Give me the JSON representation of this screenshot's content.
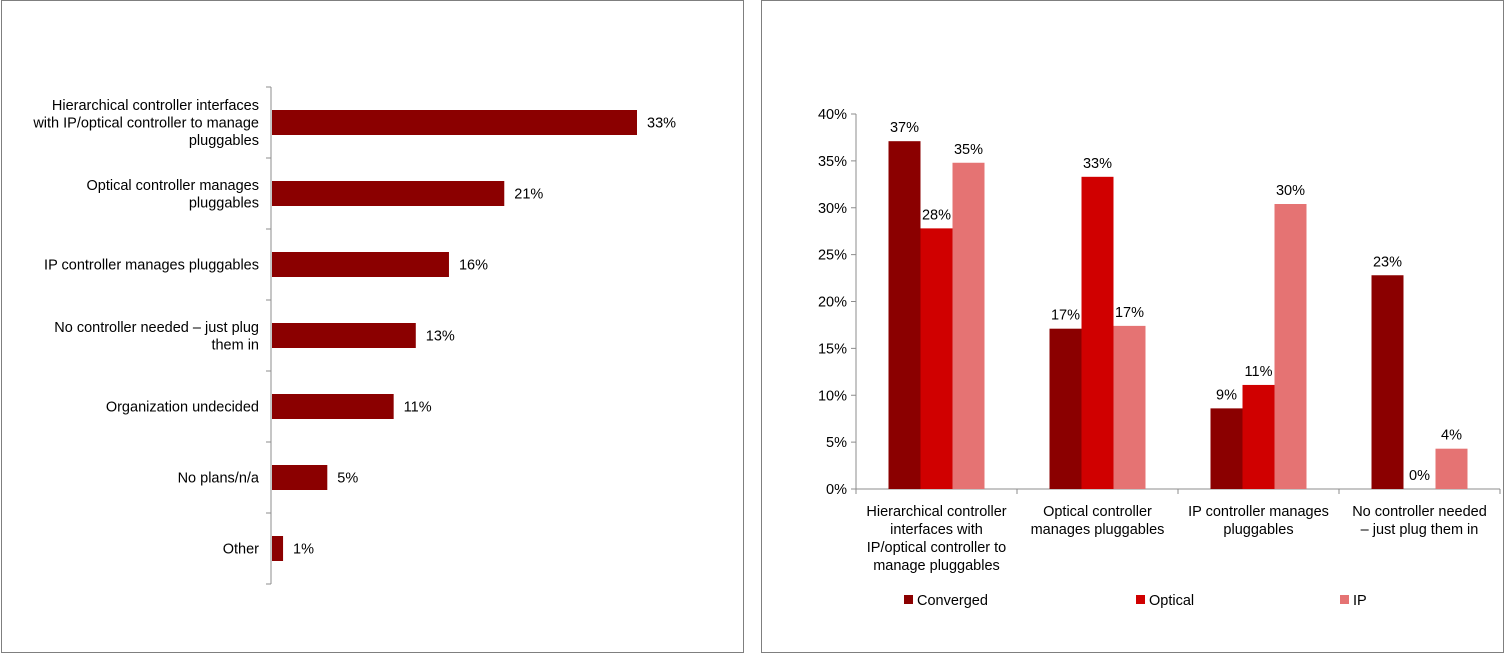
{
  "chart_data": [
    {
      "type": "bar",
      "orientation": "horizontal",
      "categories": [
        [
          "Hierarchical controller interfaces",
          "with IP/optical controller to manage",
          "pluggables"
        ],
        [
          "Optical controller manages",
          "pluggables"
        ],
        [
          "IP controller manages pluggables"
        ],
        [
          "No controller needed – just plug",
          "them in"
        ],
        [
          "Organization undecided"
        ],
        [
          "No plans/n/a"
        ],
        [
          "Other"
        ]
      ],
      "values": [
        33,
        21,
        16,
        13,
        11,
        5,
        1
      ],
      "value_labels": [
        "33%",
        "21%",
        "16%",
        "13%",
        "11%",
        "5%",
        "1%"
      ],
      "xlim": [
        0,
        40
      ],
      "color": "#8b0000",
      "grid": false
    },
    {
      "type": "bar",
      "orientation": "vertical",
      "categories": [
        [
          "Hierarchical controller",
          "interfaces with",
          "IP/optical controller to",
          "manage pluggables"
        ],
        [
          "Optical controller",
          "manages pluggables"
        ],
        [
          "IP controller manages",
          "pluggables"
        ],
        [
          "No controller needed",
          "– just plug them in"
        ]
      ],
      "series": [
        {
          "name": "Converged",
          "values": [
            37.1,
            17.1,
            8.6,
            22.8
          ],
          "labels": [
            "37%",
            "17%",
            "9%",
            "23%"
          ],
          "color": "#8b0000"
        },
        {
          "name": "Optical",
          "values": [
            27.8,
            33.3,
            11.1,
            0
          ],
          "labels": [
            "28%",
            "33%",
            "11%",
            "0%"
          ],
          "color": "#d00000"
        },
        {
          "name": "IP",
          "values": [
            34.8,
            17.4,
            30.4,
            4.3
          ],
          "labels": [
            "35%",
            "17%",
            "30%",
            "4%"
          ],
          "color": "#e57373"
        }
      ],
      "ylim": [
        0,
        40
      ],
      "yticks": [
        "0%",
        "5%",
        "10%",
        "15%",
        "20%",
        "25%",
        "30%",
        "35%",
        "40%"
      ],
      "legend_position": "bottom",
      "grid": false
    }
  ]
}
